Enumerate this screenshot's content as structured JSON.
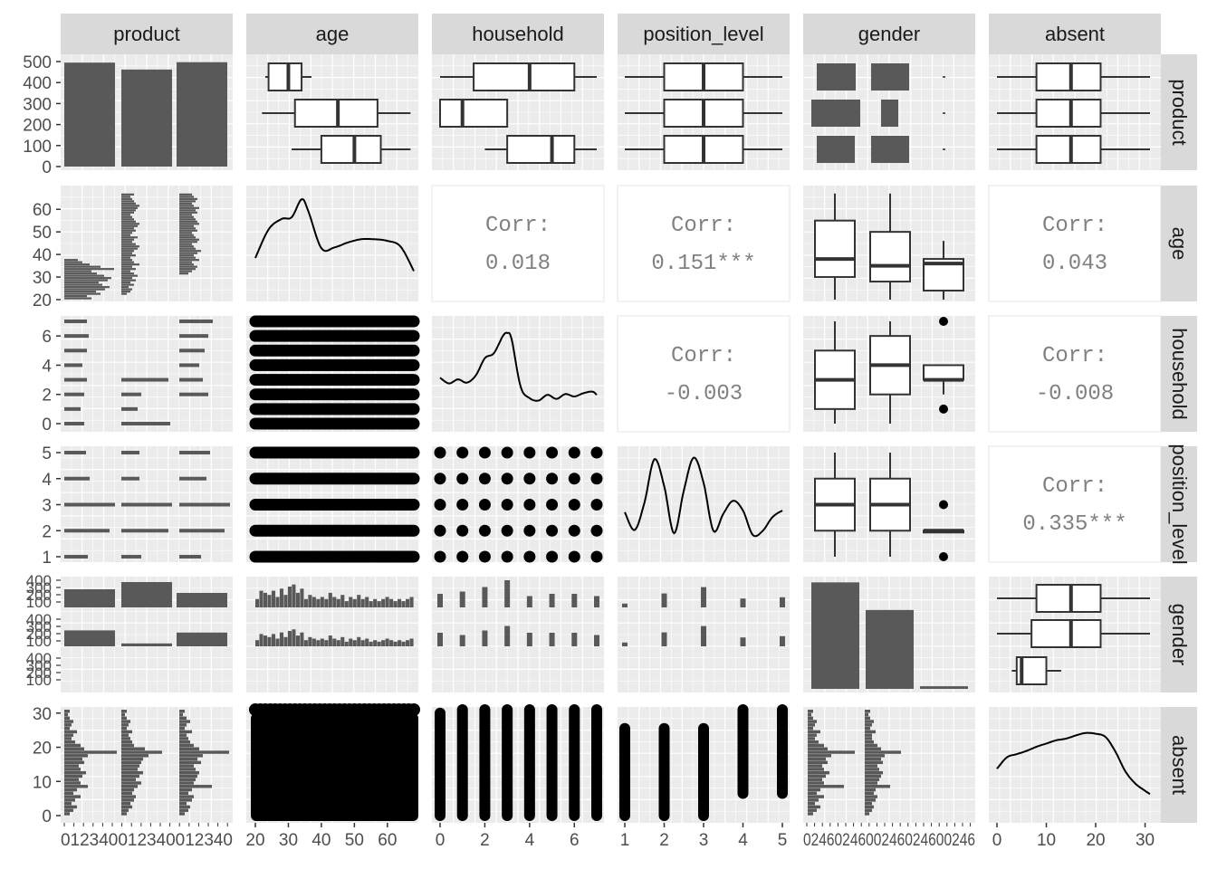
{
  "colors": {
    "panel_bg": "#EBEBEB",
    "grid": "#FFFFFF",
    "strip_bg": "#D9D9D9",
    "ink": "#000000",
    "bar": "#595959",
    "axis_text": "#4D4D4D",
    "strip_text": "#1A1A1A",
    "corr_text": "#808080"
  },
  "chart_data": {
    "type": "pairs-matrix",
    "title": "",
    "variables": [
      "product",
      "age",
      "household",
      "position_level",
      "gender",
      "absent"
    ],
    "axes": {
      "product_counts": {
        "ticks": [
          "0",
          "100",
          "200",
          "300",
          "400",
          "500"
        ],
        "range": [
          0,
          500
        ]
      },
      "age": {
        "ticks": [
          "20",
          "30",
          "40",
          "50",
          "60"
        ],
        "range": [
          20,
          68
        ]
      },
      "household": {
        "ticks": [
          "0",
          "2",
          "4",
          "6"
        ],
        "range": [
          0,
          7
        ]
      },
      "position_level": {
        "ticks": [
          "1",
          "2",
          "3",
          "4",
          "5"
        ],
        "range": [
          1,
          5
        ]
      },
      "absent": {
        "ticks": [
          "0",
          "10",
          "20",
          "30"
        ],
        "range": [
          0,
          31
        ]
      },
      "gender_counts": {
        "ticks": [
          "100",
          "200",
          "300",
          "400"
        ],
        "range": [
          0,
          400
        ]
      },
      "bottom_row": {
        "product_x": "012340012340012340",
        "gender_x": "0246024600246024600246"
      }
    },
    "product_counts": [
      495,
      462,
      497
    ],
    "gender_counts": [
      405,
      300,
      10
    ],
    "gender_by_product": [
      [
        250,
        220,
        0
      ],
      [
        350,
        40,
        0
      ],
      [
        200,
        190,
        0
      ]
    ],
    "boxplots": {
      "age_by_product": [
        {
          "lower": 23,
          "q1": 24,
          "median": 30,
          "q3": 34,
          "upper": 37
        },
        {
          "lower": 22,
          "q1": 32,
          "median": 45,
          "q3": 57,
          "upper": 67
        },
        {
          "lower": 31,
          "q1": 40,
          "median": 50,
          "q3": 58,
          "upper": 67
        }
      ],
      "household_by_product": [
        {
          "lower": 0,
          "q1": 1.5,
          "median": 4,
          "q3": 6,
          "upper": 7
        },
        {
          "lower": 0,
          "q1": 0,
          "median": 1,
          "q3": 3,
          "upper": 3
        },
        {
          "lower": 2,
          "q1": 3,
          "median": 5,
          "q3": 6,
          "upper": 7
        }
      ],
      "position_level_by_product": [
        {
          "lower": 1,
          "q1": 2,
          "median": 3,
          "q3": 4,
          "upper": 5
        },
        {
          "lower": 1,
          "q1": 2,
          "median": 3,
          "q3": 4,
          "upper": 5
        },
        {
          "lower": 1,
          "q1": 2,
          "median": 3,
          "q3": 4,
          "upper": 5
        }
      ],
      "absent_by_product": [
        {
          "lower": 0,
          "q1": 8,
          "median": 15,
          "q3": 21,
          "upper": 31
        },
        {
          "lower": 0,
          "q1": 8,
          "median": 15,
          "q3": 21,
          "upper": 31
        },
        {
          "lower": 0,
          "q1": 8,
          "median": 15,
          "q3": 21,
          "upper": 31
        }
      ],
      "absent_by_gender": [
        {
          "lower": 0,
          "q1": 8,
          "median": 15,
          "q3": 21,
          "upper": 31
        },
        {
          "lower": 0,
          "q1": 7,
          "median": 15,
          "q3": 21,
          "upper": 31
        },
        {
          "lower": 3,
          "q1": 4,
          "median": 5,
          "q3": 10,
          "upper": 13
        }
      ],
      "age_by_gender": [
        {
          "lower": 20,
          "q1": 30,
          "median": 38,
          "q3": 55,
          "upper": 67
        },
        {
          "lower": 20,
          "q1": 28,
          "median": 35,
          "q3": 50,
          "upper": 67
        },
        {
          "lower": 20,
          "q1": 24,
          "median": 36,
          "q3": 38,
          "upper": 46
        }
      ],
      "household_by_gender": [
        {
          "lower": 0,
          "q1": 1,
          "median": 3,
          "q3": 5,
          "upper": 7
        },
        {
          "lower": 0,
          "q1": 2,
          "median": 4,
          "q3": 6,
          "upper": 7
        },
        {
          "lower": 2,
          "q1": 3,
          "median": 3,
          "q3": 4,
          "upper": 4,
          "outliers": [
            1,
            7
          ]
        }
      ],
      "position_level_by_gender": [
        {
          "lower": 1,
          "q1": 2,
          "median": 3,
          "q3": 4,
          "upper": 5
        },
        {
          "lower": 1,
          "q1": 2,
          "median": 3,
          "q3": 4,
          "upper": 5
        },
        {
          "lower": 2,
          "q1": 2,
          "median": 2,
          "q3": 2,
          "upper": 2,
          "outliers": [
            1,
            3
          ]
        }
      ]
    },
    "correlations": [
      {
        "pair": "age-household",
        "label": "Corr:",
        "value": "0.018"
      },
      {
        "pair": "age-position_level",
        "label": "Corr:",
        "value": "0.151***"
      },
      {
        "pair": "age-absent",
        "label": "Corr:",
        "value": "0.043"
      },
      {
        "pair": "household-position_level",
        "label": "Corr:",
        "value": "-0.003"
      },
      {
        "pair": "household-absent",
        "label": "Corr:",
        "value": "-0.008"
      },
      {
        "pair": "position_level-absent",
        "label": "Corr:",
        "value": "0.335***"
      }
    ],
    "density": {
      "age": {
        "x": [
          20,
          24,
          28,
          31,
          34,
          36,
          40,
          44,
          48,
          52,
          56,
          60,
          64,
          68
        ],
        "y": [
          0.2,
          0.55,
          0.68,
          0.7,
          0.92,
          0.78,
          0.32,
          0.33,
          0.39,
          0.43,
          0.43,
          0.41,
          0.34,
          0.04
        ]
      },
      "household": {
        "x": [
          0,
          0.4,
          0.8,
          1.2,
          1.6,
          2,
          2.4,
          2.8,
          3,
          3.2,
          3.6,
          4,
          4.4,
          4.8,
          5.2,
          5.6,
          6,
          6.4,
          6.8,
          7
        ],
        "y": [
          0.33,
          0.26,
          0.31,
          0.27,
          0.36,
          0.57,
          0.63,
          0.84,
          0.88,
          0.8,
          0.22,
          0.08,
          0.05,
          0.12,
          0.07,
          0.13,
          0.1,
          0.14,
          0.16,
          0.12
        ]
      },
      "position_level": {
        "x": [
          1,
          1.25,
          1.5,
          1.75,
          2,
          2.25,
          2.5,
          2.75,
          3,
          3.25,
          3.5,
          3.75,
          4,
          4.25,
          4.5,
          4.75,
          5
        ],
        "y": [
          0.28,
          0.06,
          0.4,
          0.93,
          0.6,
          0.02,
          0.55,
          0.95,
          0.64,
          0.05,
          0.26,
          0.42,
          0.3,
          0.0,
          0.05,
          0.22,
          0.3
        ]
      },
      "absent": {
        "x": [
          0,
          2,
          4,
          6,
          8,
          10,
          12,
          14,
          16,
          18,
          20,
          22,
          24,
          26,
          28,
          30,
          31
        ],
        "y": [
          0.33,
          0.47,
          0.51,
          0.55,
          0.6,
          0.64,
          0.68,
          0.7,
          0.74,
          0.77,
          0.76,
          0.72,
          0.54,
          0.3,
          0.15,
          0.06,
          0.02
        ]
      }
    },
    "histograms": {
      "age": {
        "bins": [
          20,
          68
        ],
        "counts": [
          4,
          8,
          7,
          6,
          8,
          5,
          9,
          6,
          10,
          11,
          7,
          9,
          4,
          6,
          5,
          4,
          5,
          4,
          7,
          5,
          4,
          6,
          3,
          5,
          4,
          6,
          4,
          5,
          3,
          4,
          3,
          4,
          5,
          4,
          3,
          4,
          3,
          4,
          5
        ]
      },
      "household_levels": [
        0,
        1,
        2,
        3,
        4,
        5,
        6,
        7
      ],
      "household_counts_by_gender": [
        [
          30,
          35,
          45,
          60,
          25,
          30,
          30,
          25
        ],
        [
          30,
          25,
          35,
          45,
          30,
          30,
          30,
          25
        ]
      ],
      "position_counts_by_gender": [
        [
          15,
          55,
          80,
          35,
          40
        ],
        [
          15,
          55,
          80,
          35,
          40
        ]
      ]
    },
    "grid": true,
    "legend": "none"
  }
}
